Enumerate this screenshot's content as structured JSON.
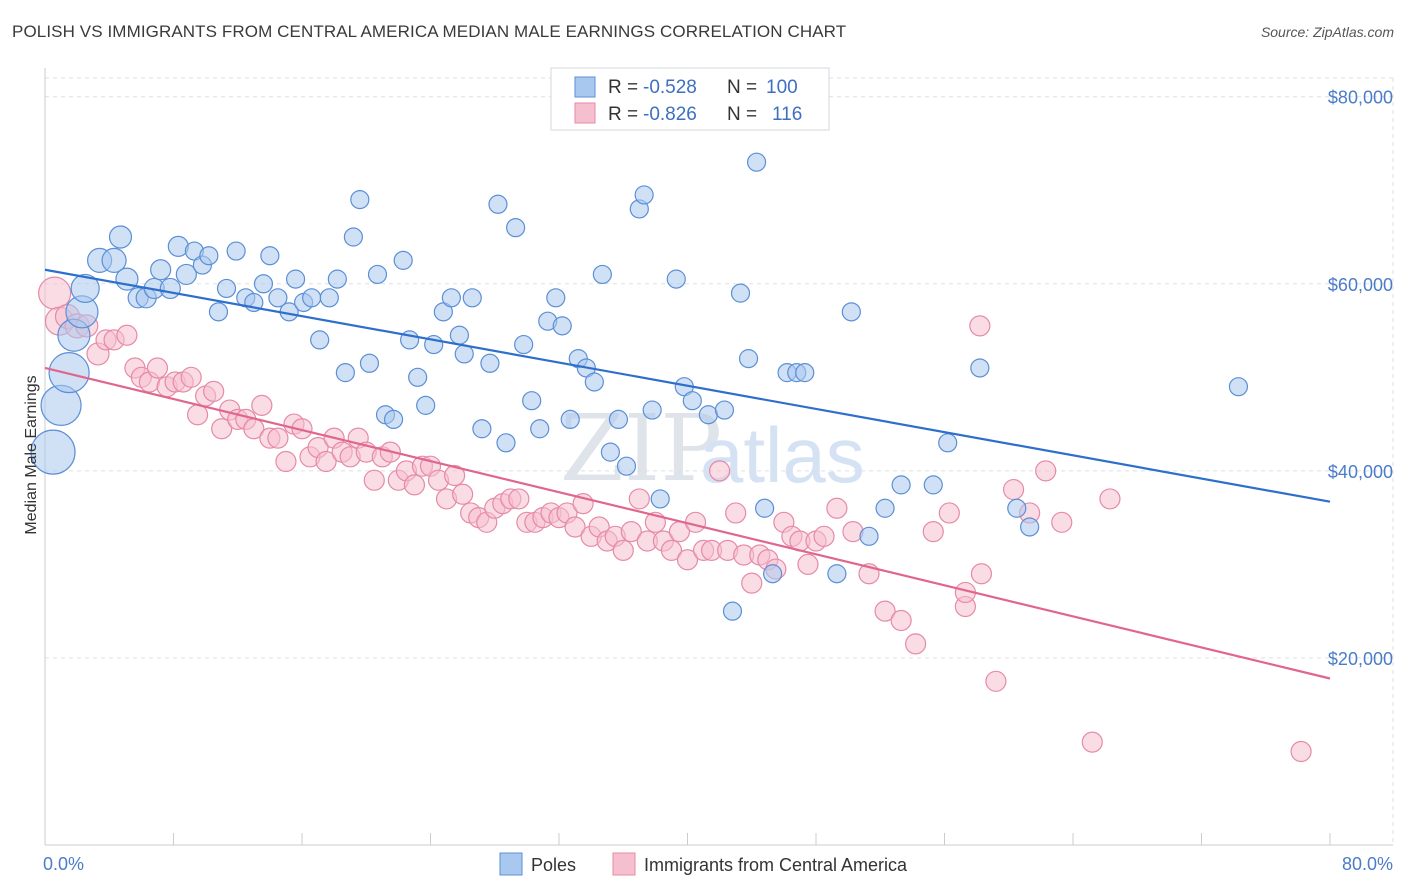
{
  "title": "POLISH VS IMMIGRANTS FROM CENTRAL AMERICA MEDIAN MALE EARNINGS CORRELATION CHART",
  "source": "Source: ZipAtlas.com",
  "watermark": {
    "zip": "ZIP",
    "atlas": "atlas"
  },
  "colors": {
    "poles_fill": "#a9c8ef",
    "poles_stroke": "#5b8fd6",
    "poles_line": "#2f6fcc",
    "ca_fill": "#f6bfd0",
    "ca_stroke": "#e68aa8",
    "ca_line": "#e0668f",
    "tick_label": "#4a7cc9",
    "grid": "#dcdfe6"
  },
  "legend": {
    "rows": [
      {
        "r_label": "R =",
        "r_value": "-0.528",
        "n_label": "N =",
        "n_value": "100"
      },
      {
        "r_label": "R =",
        "r_value": "-0.826",
        "n_label": "N =",
        "n_value": "116"
      }
    ]
  },
  "bottom_legend": [
    "Poles",
    "Immigrants from Central America"
  ],
  "chart_data": {
    "type": "scatter",
    "xlabel": "",
    "ylabel": "Median Male Earnings",
    "xlim": [
      0,
      80
    ],
    "ylim": [
      0,
      82000
    ],
    "x_tick_labels": [
      "0.0%",
      "80.0%"
    ],
    "y_ticks": [
      20000,
      40000,
      60000,
      80000
    ],
    "y_tick_labels": [
      "$20,000",
      "$40,000",
      "$60,000",
      "$80,000"
    ],
    "grid": true,
    "series": [
      {
        "name": "Poles",
        "trend": {
          "x": [
            0,
            80
          ],
          "y": [
            61500,
            36700
          ]
        },
        "points": [
          [
            0.5,
            42000,
            22
          ],
          [
            1.0,
            47000,
            20
          ],
          [
            1.5,
            50500,
            20
          ],
          [
            1.8,
            54500,
            16
          ],
          [
            2.3,
            57000,
            16
          ],
          [
            2.5,
            59500,
            14
          ],
          [
            3.4,
            62500,
            12
          ],
          [
            4.3,
            62500,
            12
          ],
          [
            4.7,
            65000,
            11
          ],
          [
            5.1,
            60500,
            11
          ],
          [
            5.8,
            58500,
            10
          ],
          [
            6.3,
            58500,
            10
          ],
          [
            6.8,
            59500,
            10
          ],
          [
            7.2,
            61500,
            10
          ],
          [
            7.8,
            59500,
            10
          ],
          [
            8.3,
            64000,
            10
          ],
          [
            8.8,
            61000,
            10
          ],
          [
            9.3,
            63500,
            9
          ],
          [
            9.8,
            62000,
            9
          ],
          [
            10.2,
            63000,
            9
          ],
          [
            10.8,
            57000,
            9
          ],
          [
            11.3,
            59500,
            9
          ],
          [
            11.9,
            63500,
            9
          ],
          [
            12.5,
            58500,
            9
          ],
          [
            13.0,
            58000,
            9
          ],
          [
            13.6,
            60000,
            9
          ],
          [
            14.0,
            63000,
            9
          ],
          [
            14.5,
            58500,
            9
          ],
          [
            15.2,
            57000,
            9
          ],
          [
            15.6,
            60500,
            9
          ],
          [
            16.1,
            58000,
            9
          ],
          [
            16.6,
            58500,
            9
          ],
          [
            17.1,
            54000,
            9
          ],
          [
            17.7,
            58500,
            9
          ],
          [
            18.2,
            60500,
            9
          ],
          [
            18.7,
            50500,
            9
          ],
          [
            19.2,
            65000,
            9
          ],
          [
            19.6,
            69000,
            9
          ],
          [
            20.2,
            51500,
            9
          ],
          [
            20.7,
            61000,
            9
          ],
          [
            21.2,
            46000,
            9
          ],
          [
            21.7,
            45500,
            9
          ],
          [
            22.3,
            62500,
            9
          ],
          [
            22.7,
            54000,
            9
          ],
          [
            23.2,
            50000,
            9
          ],
          [
            23.7,
            47000,
            9
          ],
          [
            24.2,
            53500,
            9
          ],
          [
            24.8,
            57000,
            9
          ],
          [
            25.3,
            58500,
            9
          ],
          [
            25.8,
            54500,
            9
          ],
          [
            26.1,
            52500,
            9
          ],
          [
            26.6,
            58500,
            9
          ],
          [
            27.2,
            44500,
            9
          ],
          [
            27.7,
            51500,
            9
          ],
          [
            28.2,
            68500,
            9
          ],
          [
            28.7,
            43000,
            9
          ],
          [
            29.3,
            66000,
            9
          ],
          [
            29.8,
            53500,
            9
          ],
          [
            30.3,
            47500,
            9
          ],
          [
            30.8,
            44500,
            9
          ],
          [
            31.3,
            56000,
            9
          ],
          [
            31.8,
            58500,
            9
          ],
          [
            32.2,
            55500,
            9
          ],
          [
            32.7,
            45500,
            9
          ],
          [
            33.2,
            52000,
            9
          ],
          [
            33.7,
            51000,
            9
          ],
          [
            34.2,
            49500,
            9
          ],
          [
            34.7,
            61000,
            9
          ],
          [
            35.2,
            42000,
            9
          ],
          [
            35.7,
            45500,
            9
          ],
          [
            36.2,
            40500,
            9
          ],
          [
            37.0,
            68000,
            9
          ],
          [
            37.3,
            69500,
            9
          ],
          [
            37.8,
            46500,
            9
          ],
          [
            38.3,
            37000,
            9
          ],
          [
            39.3,
            60500,
            9
          ],
          [
            39.8,
            49000,
            9
          ],
          [
            40.3,
            47500,
            9
          ],
          [
            41.3,
            46000,
            9
          ],
          [
            42.3,
            46500,
            9
          ],
          [
            42.8,
            25000,
            9
          ],
          [
            43.3,
            59000,
            9
          ],
          [
            43.8,
            52000,
            9
          ],
          [
            44.3,
            73000,
            9
          ],
          [
            44.8,
            36000,
            9
          ],
          [
            45.3,
            29000,
            9
          ],
          [
            46.2,
            50500,
            9
          ],
          [
            46.8,
            50500,
            9
          ],
          [
            47.3,
            50500,
            9
          ],
          [
            49.3,
            29000,
            9
          ],
          [
            50.2,
            57000,
            9
          ],
          [
            51.3,
            33000,
            9
          ],
          [
            52.3,
            36000,
            9
          ],
          [
            53.3,
            38500,
            9
          ],
          [
            55.3,
            38500,
            9
          ],
          [
            56.2,
            43000,
            9
          ],
          [
            58.2,
            51000,
            9
          ],
          [
            61.3,
            34000,
            9
          ],
          [
            74.3,
            49000,
            9
          ],
          [
            60.5,
            36000,
            9
          ]
        ]
      },
      {
        "name": "Immigrants from Central America",
        "trend": {
          "x": [
            0,
            80
          ],
          "y": [
            51000,
            17800
          ]
        },
        "points": [
          [
            0.6,
            59000,
            16
          ],
          [
            0.9,
            56000,
            14
          ],
          [
            1.4,
            56500,
            12
          ],
          [
            2.0,
            55500,
            12
          ],
          [
            2.6,
            55500,
            11
          ],
          [
            3.3,
            52500,
            11
          ],
          [
            3.8,
            54000,
            10
          ],
          [
            4.3,
            54000,
            10
          ],
          [
            5.1,
            54500,
            10
          ],
          [
            5.6,
            51000,
            10
          ],
          [
            6.0,
            50000,
            10
          ],
          [
            6.5,
            49500,
            10
          ],
          [
            7.0,
            51000,
            10
          ],
          [
            7.6,
            49000,
            10
          ],
          [
            8.1,
            49500,
            10
          ],
          [
            8.6,
            49500,
            10
          ],
          [
            9.1,
            50000,
            10
          ],
          [
            9.5,
            46000,
            10
          ],
          [
            10.0,
            48000,
            10
          ],
          [
            10.5,
            48500,
            10
          ],
          [
            11.0,
            44500,
            10
          ],
          [
            11.5,
            46500,
            10
          ],
          [
            12.0,
            45500,
            10
          ],
          [
            12.5,
            45500,
            10
          ],
          [
            13.0,
            44500,
            10
          ],
          [
            13.5,
            47000,
            10
          ],
          [
            14.0,
            43500,
            10
          ],
          [
            14.5,
            43500,
            10
          ],
          [
            15.0,
            41000,
            10
          ],
          [
            15.5,
            45000,
            10
          ],
          [
            16.0,
            44500,
            10
          ],
          [
            16.5,
            41500,
            10
          ],
          [
            17.0,
            42500,
            10
          ],
          [
            17.5,
            41000,
            10
          ],
          [
            18.0,
            43500,
            10
          ],
          [
            18.5,
            42000,
            10
          ],
          [
            19.0,
            41500,
            10
          ],
          [
            19.5,
            43500,
            10
          ],
          [
            20.0,
            42000,
            10
          ],
          [
            20.5,
            39000,
            10
          ],
          [
            21.0,
            41500,
            10
          ],
          [
            21.5,
            42000,
            10
          ],
          [
            22.0,
            39000,
            10
          ],
          [
            22.5,
            40000,
            10
          ],
          [
            23.0,
            38500,
            10
          ],
          [
            23.5,
            40500,
            10
          ],
          [
            24.0,
            40500,
            10
          ],
          [
            24.5,
            39000,
            10
          ],
          [
            25.0,
            37000,
            10
          ],
          [
            25.5,
            39500,
            10
          ],
          [
            26.0,
            37500,
            10
          ],
          [
            26.5,
            35500,
            10
          ],
          [
            27.0,
            35000,
            10
          ],
          [
            27.5,
            34500,
            10
          ],
          [
            28.0,
            36000,
            10
          ],
          [
            28.5,
            36500,
            10
          ],
          [
            29.0,
            37000,
            10
          ],
          [
            29.5,
            37000,
            10
          ],
          [
            30.0,
            34500,
            10
          ],
          [
            30.5,
            34500,
            10
          ],
          [
            31.0,
            35000,
            10
          ],
          [
            31.5,
            35500,
            10
          ],
          [
            32.0,
            35000,
            10
          ],
          [
            32.5,
            35500,
            10
          ],
          [
            33.0,
            34000,
            10
          ],
          [
            33.5,
            36500,
            10
          ],
          [
            34.0,
            33000,
            10
          ],
          [
            34.5,
            34000,
            10
          ],
          [
            35.0,
            32500,
            10
          ],
          [
            35.5,
            33000,
            10
          ],
          [
            36.0,
            31500,
            10
          ],
          [
            36.5,
            33500,
            10
          ],
          [
            37.0,
            37000,
            10
          ],
          [
            37.5,
            32500,
            10
          ],
          [
            38.0,
            34500,
            10
          ],
          [
            38.5,
            32500,
            10
          ],
          [
            39.0,
            31500,
            10
          ],
          [
            39.5,
            33500,
            10
          ],
          [
            40.0,
            30500,
            10
          ],
          [
            40.5,
            34500,
            10
          ],
          [
            41.0,
            31500,
            10
          ],
          [
            41.5,
            31500,
            10
          ],
          [
            42.0,
            40000,
            10
          ],
          [
            42.5,
            31500,
            10
          ],
          [
            43.0,
            35500,
            10
          ],
          [
            43.5,
            31000,
            10
          ],
          [
            44.0,
            28000,
            10
          ],
          [
            44.5,
            31000,
            10
          ],
          [
            45.0,
            30500,
            10
          ],
          [
            45.5,
            29500,
            10
          ],
          [
            46.0,
            34500,
            10
          ],
          [
            46.5,
            33000,
            10
          ],
          [
            47.0,
            32500,
            10
          ],
          [
            47.5,
            30000,
            10
          ],
          [
            48.0,
            32500,
            10
          ],
          [
            48.5,
            33000,
            10
          ],
          [
            49.3,
            36000,
            10
          ],
          [
            50.3,
            33500,
            10
          ],
          [
            51.3,
            29000,
            10
          ],
          [
            52.3,
            25000,
            10
          ],
          [
            53.3,
            24000,
            10
          ],
          [
            54.2,
            21500,
            10
          ],
          [
            55.3,
            33500,
            10
          ],
          [
            56.3,
            35500,
            10
          ],
          [
            57.3,
            25500,
            10
          ],
          [
            58.3,
            29000,
            10
          ],
          [
            59.2,
            17500,
            10
          ],
          [
            60.3,
            38000,
            10
          ],
          [
            61.3,
            35500,
            10
          ],
          [
            62.3,
            40000,
            10
          ],
          [
            63.3,
            34500,
            10
          ],
          [
            65.2,
            11000,
            10
          ],
          [
            66.3,
            37000,
            10
          ],
          [
            78.2,
            10000,
            10
          ],
          [
            57.3,
            27000,
            10
          ],
          [
            58.2,
            55500,
            10
          ]
        ]
      }
    ]
  }
}
